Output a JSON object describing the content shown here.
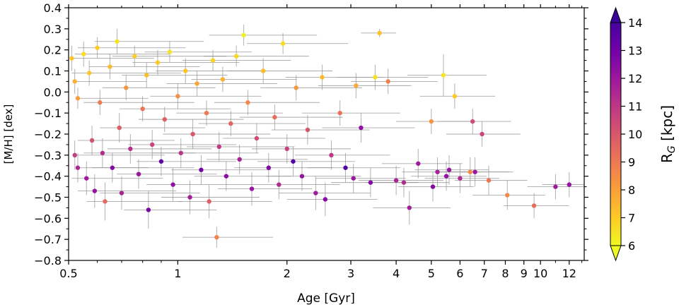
{
  "chart_data": {
    "type": "scatter",
    "title": "",
    "xlabel": "Age [Gyr]",
    "ylabel": "[M/H] [dex]",
    "xscale": "log",
    "xlim": [
      0.5,
      13.2
    ],
    "ylim": [
      -0.8,
      0.4
    ],
    "xticks": [
      0.5,
      1,
      2,
      3,
      4,
      5,
      6,
      7,
      8,
      9,
      10,
      12
    ],
    "xtick_labels": [
      "0.5",
      "1",
      "2",
      "3",
      "4",
      "5",
      "6",
      "7",
      "8",
      "9",
      "10",
      "12"
    ],
    "yticks": [
      0.4,
      0.3,
      0.2,
      0.1,
      0.0,
      -0.1,
      -0.2,
      -0.3,
      -0.4,
      -0.5,
      -0.6,
      -0.7,
      -0.8
    ],
    "ytick_labels": [
      "0.4",
      "0.3",
      "0.2",
      "0.1",
      "0.0",
      "−0.1",
      "−0.2",
      "−0.3",
      "−0.4",
      "−0.5",
      "−0.6",
      "−0.7",
      "−0.8"
    ],
    "error_bars": true,
    "colorbar": {
      "label": "R_G [kpc]",
      "label_main": "R",
      "label_sub": "G",
      "label_unit": " [kpc]",
      "min": 6,
      "max": 14,
      "ticks": [
        6,
        7,
        8,
        9,
        10,
        11,
        12,
        13,
        14
      ],
      "colormap": "plasma_r",
      "extend": "both"
    },
    "points_note": "representative subset of the visible stars: [age_Gyr, M_H_dex, R_G_kpc, age_err_low, age_err_high, M_H_err]",
    "points": [
      [
        0.51,
        0.16,
        7.2,
        0.0,
        0.35,
        0.06
      ],
      [
        0.52,
        0.05,
        7.6,
        0.0,
        0.3,
        0.06
      ],
      [
        0.53,
        -0.03,
        8.1,
        0.0,
        0.3,
        0.05
      ],
      [
        0.52,
        -0.3,
        10.8,
        0.0,
        0.4,
        0.07
      ],
      [
        0.53,
        -0.36,
        11.5,
        0.0,
        0.3,
        0.07
      ],
      [
        0.55,
        0.18,
        6.6,
        0.03,
        0.4,
        0.06
      ],
      [
        0.56,
        -0.41,
        11.9,
        0.05,
        0.35,
        0.08
      ],
      [
        0.57,
        0.09,
        7.1,
        0.06,
        0.45,
        0.06
      ],
      [
        0.58,
        -0.23,
        10.2,
        0.05,
        0.4,
        0.07
      ],
      [
        0.59,
        -0.47,
        12.2,
        0.06,
        0.4,
        0.08
      ],
      [
        0.6,
        0.21,
        7.0,
        0.07,
        0.45,
        0.05
      ],
      [
        0.61,
        -0.05,
        8.9,
        0.06,
        0.5,
        0.06
      ],
      [
        0.62,
        -0.29,
        11.3,
        0.07,
        0.5,
        0.07
      ],
      [
        0.63,
        -0.52,
        9.5,
        0.07,
        0.4,
        0.09
      ],
      [
        0.65,
        0.12,
        7.4,
        0.08,
        0.5,
        0.06
      ],
      [
        0.66,
        -0.36,
        12.6,
        0.08,
        0.45,
        0.07
      ],
      [
        0.68,
        0.24,
        6.4,
        0.09,
        0.5,
        0.06
      ],
      [
        0.69,
        -0.17,
        9.8,
        0.08,
        0.5,
        0.07
      ],
      [
        0.7,
        -0.48,
        11.6,
        0.09,
        0.45,
        0.08
      ],
      [
        0.72,
        0.02,
        8.3,
        0.1,
        0.55,
        0.06
      ],
      [
        0.74,
        -0.27,
        11.2,
        0.1,
        0.5,
        0.07
      ],
      [
        0.76,
        0.17,
        6.9,
        0.1,
        0.6,
        0.05
      ],
      [
        0.78,
        -0.39,
        12.1,
        0.1,
        0.5,
        0.07
      ],
      [
        0.8,
        -0.08,
        9.1,
        0.11,
        0.6,
        0.06
      ],
      [
        0.82,
        0.08,
        7.3,
        0.12,
        0.55,
        0.06
      ],
      [
        0.83,
        -0.56,
        12.8,
        0.12,
        0.45,
        0.09
      ],
      [
        0.85,
        -0.25,
        10.6,
        0.12,
        0.6,
        0.07
      ],
      [
        0.88,
        0.14,
        7.0,
        0.13,
        0.6,
        0.06
      ],
      [
        0.9,
        -0.33,
        13.4,
        0.13,
        0.55,
        0.07
      ],
      [
        0.92,
        -0.13,
        9.7,
        0.14,
        0.6,
        0.06
      ],
      [
        0.95,
        0.19,
        6.5,
        0.14,
        0.65,
        0.05
      ],
      [
        0.97,
        -0.44,
        12.3,
        0.15,
        0.55,
        0.08
      ],
      [
        1.0,
        -0.02,
        8.4,
        0.16,
        0.7,
        0.06
      ],
      [
        1.02,
        -0.29,
        11.1,
        0.17,
        0.65,
        0.07
      ],
      [
        1.05,
        0.1,
        7.2,
        0.18,
        0.7,
        0.06
      ],
      [
        1.08,
        -0.5,
        11.8,
        0.18,
        0.6,
        0.08
      ],
      [
        1.1,
        -0.2,
        10.0,
        0.19,
        0.7,
        0.07
      ],
      [
        1.13,
        0.04,
        7.9,
        0.2,
        0.75,
        0.06
      ],
      [
        1.16,
        -0.37,
        12.9,
        0.2,
        0.65,
        0.07
      ],
      [
        1.2,
        -0.1,
        9.0,
        0.21,
        0.75,
        0.06
      ],
      [
        1.22,
        -0.52,
        9.8,
        0.22,
        0.6,
        0.08
      ],
      [
        1.25,
        0.15,
        6.8,
        0.22,
        0.8,
        0.05
      ],
      [
        1.28,
        -0.69,
        8.7,
        0.25,
        0.55,
        0.05
      ],
      [
        1.3,
        -0.26,
        10.9,
        0.24,
        0.8,
        0.07
      ],
      [
        1.33,
        0.06,
        7.6,
        0.24,
        0.8,
        0.06
      ],
      [
        1.36,
        -0.4,
        12.4,
        0.25,
        0.7,
        0.07
      ],
      [
        1.4,
        -0.15,
        9.6,
        0.26,
        0.85,
        0.06
      ],
      [
        1.45,
        0.17,
        6.7,
        0.27,
        0.85,
        0.05
      ],
      [
        1.48,
        -0.32,
        11.7,
        0.28,
        0.8,
        0.07
      ],
      [
        1.52,
        0.27,
        6.2,
        0.3,
        0.9,
        0.05
      ],
      [
        1.56,
        -0.05,
        8.6,
        0.3,
        0.9,
        0.06
      ],
      [
        1.6,
        -0.46,
        12.0,
        0.31,
        0.75,
        0.08
      ],
      [
        1.65,
        -0.22,
        10.3,
        0.32,
        0.9,
        0.07
      ],
      [
        1.72,
        0.1,
        7.3,
        0.34,
        0.95,
        0.06
      ],
      [
        1.78,
        -0.36,
        12.7,
        0.35,
        0.9,
        0.07
      ],
      [
        1.85,
        -0.12,
        9.3,
        0.37,
        1.0,
        0.06
      ],
      [
        1.9,
        -0.44,
        11.4,
        0.38,
        0.9,
        0.07
      ],
      [
        1.95,
        0.23,
        6.6,
        0.4,
        1.0,
        0.05
      ],
      [
        2.0,
        -0.27,
        10.7,
        0.4,
        1.0,
        0.07
      ],
      [
        2.08,
        -0.33,
        13.6,
        0.42,
        1.0,
        0.07
      ],
      [
        2.12,
        0.02,
        8.2,
        0.43,
        1.1,
        0.06
      ],
      [
        2.2,
        -0.4,
        12.2,
        0.45,
        1.0,
        0.07
      ],
      [
        2.28,
        -0.18,
        10.1,
        0.47,
        1.1,
        0.07
      ],
      [
        2.4,
        -0.48,
        11.9,
        0.5,
        1.0,
        0.08
      ],
      [
        2.5,
        0.07,
        7.4,
        0.52,
        1.2,
        0.06
      ],
      [
        2.55,
        -0.51,
        12.5,
        0.55,
        1.0,
        0.08
      ],
      [
        2.65,
        -0.3,
        11.0,
        0.55,
        1.2,
        0.07
      ],
      [
        2.8,
        -0.1,
        9.2,
        0.6,
        1.3,
        0.06
      ],
      [
        2.9,
        -0.36,
        13.7,
        0.62,
        1.2,
        0.07
      ],
      [
        3.05,
        -0.41,
        12.0,
        0.65,
        1.2,
        0.07
      ],
      [
        3.1,
        0.03,
        7.8,
        0.66,
        1.3,
        0.06
      ],
      [
        3.2,
        -0.17,
        12.3,
        0.7,
        1.3,
        0.07
      ],
      [
        3.4,
        -0.43,
        12.6,
        0.75,
        1.2,
        0.07
      ],
      [
        3.5,
        0.07,
        6.5,
        0.75,
        1.4,
        0.06
      ],
      [
        3.6,
        0.28,
        7.2,
        0.4,
        0.4,
        0.02
      ],
      [
        3.8,
        0.05,
        8.8,
        0.8,
        1.4,
        0.06
      ],
      [
        4.0,
        -0.42,
        11.6,
        0.85,
        1.4,
        0.07
      ],
      [
        4.2,
        -0.43,
        11.3,
        0.9,
        1.4,
        0.07
      ],
      [
        4.35,
        -0.55,
        11.8,
        0.9,
        1.3,
        0.08
      ],
      [
        4.6,
        -0.34,
        11.9,
        0.95,
        1.5,
        0.07
      ],
      [
        5.0,
        -0.14,
        8.2,
        1.0,
        1.6,
        0.06
      ],
      [
        5.05,
        -0.45,
        12.5,
        1.0,
        1.5,
        0.07
      ],
      [
        5.2,
        -0.38,
        11.7,
        1.05,
        1.6,
        0.07
      ],
      [
        5.4,
        0.08,
        6.4,
        1.1,
        1.7,
        0.1
      ],
      [
        5.5,
        -0.4,
        12.2,
        1.1,
        1.6,
        0.07
      ],
      [
        5.6,
        -0.37,
        12.1,
        1.1,
        1.6,
        0.07
      ],
      [
        5.8,
        -0.02,
        7.0,
        1.15,
        1.7,
        0.06
      ],
      [
        6.0,
        -0.41,
        11.4,
        1.2,
        1.7,
        0.07
      ],
      [
        6.4,
        -0.38,
        8.5,
        1.3,
        1.8,
        0.07
      ],
      [
        6.5,
        -0.14,
        10.3,
        1.3,
        1.8,
        0.06
      ],
      [
        6.6,
        -0.38,
        12.0,
        1.3,
        1.8,
        0.07
      ],
      [
        6.9,
        -0.2,
        10.6,
        1.4,
        1.9,
        0.06
      ],
      [
        7.2,
        -0.42,
        9.1,
        1.4,
        2.0,
        0.07
      ],
      [
        8.1,
        -0.49,
        8.6,
        1.6,
        2.2,
        0.07
      ],
      [
        9.6,
        -0.54,
        9.3,
        1.7,
        2.4,
        0.06
      ],
      [
        11.0,
        -0.45,
        11.9,
        1.8,
        2.3,
        0.06
      ],
      [
        12.0,
        -0.44,
        12.2,
        1.9,
        1.8,
        0.06
      ]
    ]
  }
}
